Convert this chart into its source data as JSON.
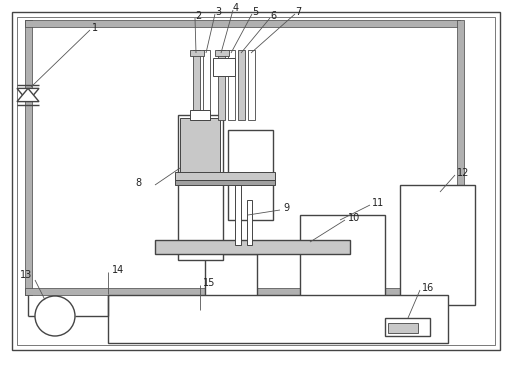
{
  "bg_color": "#ffffff",
  "lc": "#444444",
  "lw": 1.0,
  "tlw": 0.7,
  "shade_color": "#c8c8c8",
  "pipe_color": "#b0b0b0",
  "fig_w": 5.17,
  "fig_h": 3.68,
  "dpi": 100,
  "label_fs": 7.0,
  "label_color": "#222222"
}
